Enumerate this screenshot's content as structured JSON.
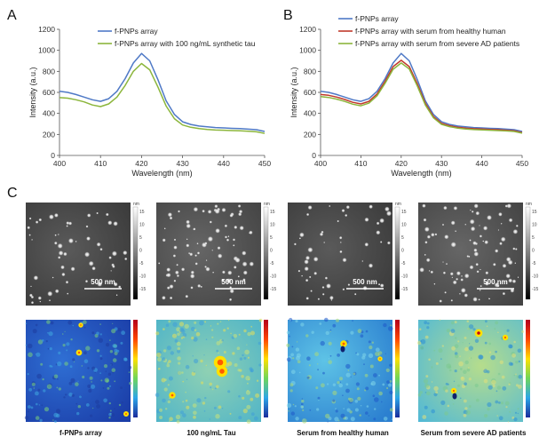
{
  "panel_labels": {
    "a": "A",
    "b": "B",
    "c": "C"
  },
  "colors": {
    "blue": "#4f79c6",
    "red": "#c0392b",
    "green": "#8cb63c"
  },
  "chart_data": [
    {
      "id": "A",
      "type": "line",
      "xlabel": "Wavelength (nm)",
      "ylabel": "Intensity (a.u.)",
      "xlim": [
        400,
        450
      ],
      "ylim": [
        0,
        1200
      ],
      "xticks": [
        400,
        410,
        420,
        430,
        440,
        450
      ],
      "yticks": [
        0,
        200,
        400,
        600,
        800,
        1000,
        1200
      ],
      "legend_position": "top-right",
      "series": [
        {
          "name": "f-PNPs array",
          "color": "#4f79c6",
          "x": [
            400,
            402,
            404,
            406,
            408,
            410,
            412,
            414,
            416,
            418,
            420,
            422,
            424,
            426,
            428,
            430,
            432,
            434,
            436,
            438,
            440,
            442,
            444,
            446,
            448,
            450
          ],
          "y": [
            610,
            600,
            580,
            555,
            530,
            515,
            540,
            610,
            730,
            880,
            970,
            900,
            720,
            520,
            390,
            320,
            295,
            280,
            272,
            265,
            262,
            258,
            255,
            250,
            245,
            228
          ]
        },
        {
          "name": "f-PNPs array with 100 ng/mL synthetic tau",
          "color": "#8cb63c",
          "x": [
            400,
            402,
            404,
            406,
            408,
            410,
            412,
            414,
            416,
            418,
            420,
            422,
            424,
            426,
            428,
            430,
            432,
            434,
            436,
            438,
            440,
            442,
            444,
            446,
            448,
            450
          ],
          "y": [
            550,
            545,
            530,
            510,
            480,
            465,
            490,
            555,
            665,
            800,
            875,
            815,
            650,
            470,
            350,
            290,
            268,
            255,
            248,
            242,
            240,
            237,
            234,
            230,
            225,
            210
          ]
        }
      ]
    },
    {
      "id": "B",
      "type": "line",
      "xlabel": "Wavelength (nm)",
      "ylabel": "Intensity (a.u.)",
      "xlim": [
        400,
        450
      ],
      "ylim": [
        0,
        1200
      ],
      "xticks": [
        400,
        410,
        420,
        430,
        440,
        450
      ],
      "yticks": [
        0,
        200,
        400,
        600,
        800,
        1000,
        1200
      ],
      "legend_position": "top-right",
      "series": [
        {
          "name": "f-PNPs array",
          "color": "#4f79c6",
          "x": [
            400,
            402,
            404,
            406,
            408,
            410,
            412,
            414,
            416,
            418,
            420,
            422,
            424,
            426,
            428,
            430,
            432,
            434,
            436,
            438,
            440,
            442,
            444,
            446,
            448,
            450
          ],
          "y": [
            610,
            600,
            580,
            555,
            530,
            515,
            540,
            610,
            730,
            880,
            970,
            900,
            720,
            520,
            390,
            320,
            295,
            280,
            272,
            265,
            262,
            258,
            255,
            250,
            245,
            228
          ]
        },
        {
          "name": "f-PNPs array with serum from healthy human",
          "color": "#c0392b",
          "x": [
            400,
            402,
            404,
            406,
            408,
            410,
            412,
            414,
            416,
            418,
            420,
            422,
            424,
            426,
            428,
            430,
            432,
            434,
            436,
            438,
            440,
            442,
            444,
            446,
            448,
            450
          ],
          "y": [
            580,
            572,
            555,
            532,
            505,
            490,
            515,
            585,
            705,
            845,
            905,
            845,
            680,
            495,
            370,
            305,
            282,
            268,
            260,
            254,
            251,
            248,
            245,
            240,
            235,
            218
          ]
        },
        {
          "name": "f-PNPs array with serum from severe AD patients",
          "color": "#8cb63c",
          "x": [
            400,
            402,
            404,
            406,
            408,
            410,
            412,
            414,
            416,
            418,
            420,
            422,
            424,
            426,
            428,
            430,
            432,
            434,
            436,
            438,
            440,
            442,
            444,
            446,
            448,
            450
          ],
          "y": [
            560,
            552,
            536,
            514,
            488,
            472,
            498,
            568,
            685,
            820,
            880,
            822,
            660,
            480,
            358,
            296,
            274,
            260,
            252,
            246,
            243,
            240,
            237,
            233,
            228,
            212
          ]
        }
      ]
    }
  ],
  "afm": {
    "scale_bar": "500 nm",
    "colorbar_unit": "nm",
    "colorbar_ticks": [
      "15",
      "10",
      "5",
      "0",
      "-5",
      "-10",
      "-15"
    ],
    "labels": [
      "f-PNPs array",
      "100 ng/mL Tau",
      "Serum from healthy human",
      "Serum from severe AD patients"
    ]
  }
}
